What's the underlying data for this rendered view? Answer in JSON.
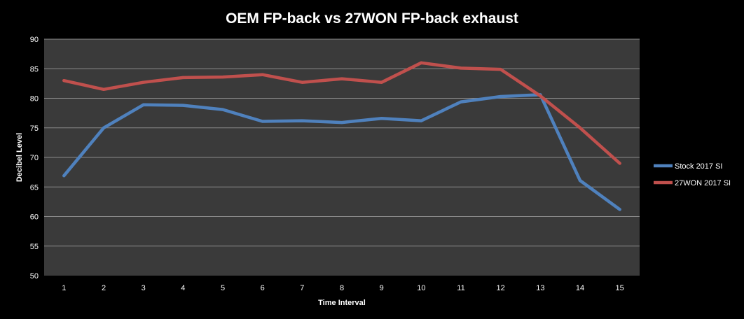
{
  "chart_data": {
    "type": "line",
    "title": "OEM FP-back vs 27WON FP-back exhaust",
    "xlabel": "Time Interval",
    "ylabel": "Decibel Level",
    "x": [
      1,
      2,
      3,
      4,
      5,
      6,
      7,
      8,
      9,
      10,
      11,
      12,
      13,
      14,
      15
    ],
    "ylim": [
      50,
      90
    ],
    "yticks": [
      50,
      55,
      60,
      65,
      70,
      75,
      80,
      85,
      90
    ],
    "grid": true,
    "legend_position": "right",
    "series": [
      {
        "name": "Stock 2017 SI",
        "color": "#4f81bd",
        "values": [
          66.9,
          75.0,
          78.9,
          78.8,
          78.1,
          76.1,
          76.2,
          75.9,
          76.6,
          76.2,
          79.4,
          80.3,
          80.6,
          66.1,
          61.2
        ]
      },
      {
        "name": "27WON 2017 SI",
        "color": "#c0504d",
        "values": [
          83.0,
          81.5,
          82.7,
          83.5,
          83.6,
          84.0,
          82.7,
          83.3,
          82.7,
          86.0,
          85.1,
          84.9,
          80.4,
          75.0,
          69.0
        ]
      }
    ]
  },
  "colors": {
    "background": "#000000",
    "plot_area": "#3a3a3a",
    "gridline": "#8a8a8a",
    "text": "#ffffff"
  }
}
